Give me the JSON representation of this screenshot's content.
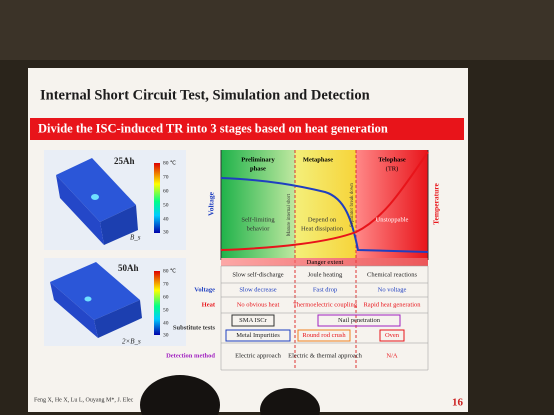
{
  "header": {
    "title": "Internal Short Circuit Test, Simulation and Detection"
  },
  "banner": "Divide the ISC-induced TR into 3 stages based on heat generation",
  "panels": [
    {
      "label": "25Ah",
      "colorbar_top": "80 ℃",
      "colorbar_ticks": [
        70,
        60,
        50,
        40,
        30
      ],
      "dimension": "B_s"
    },
    {
      "label": "50Ah",
      "colorbar_top": "80 ℃",
      "colorbar_ticks": [
        70,
        60,
        50,
        40,
        30
      ],
      "dimension": "2×B_s"
    }
  ],
  "diagram": {
    "phases": [
      {
        "label": [
          "Preliminary",
          "phase"
        ],
        "note": [
          "Self-limiting",
          "behavior"
        ]
      },
      {
        "label": [
          "Metaphase"
        ],
        "note": [
          "Depend on",
          "Heat dissipation"
        ]
      },
      {
        "label": [
          "Telophase",
          "(TR)"
        ],
        "note": [
          "Unstoppable"
        ]
      }
    ],
    "left_axis": "Voltage",
    "right_axis": "Temperature",
    "markers": [
      "Mature internal short",
      "Separator break down"
    ],
    "danger": "Danger extent"
  },
  "table": {
    "rows": [
      {
        "label": "",
        "cells": [
          "Slow self-discharge",
          "Joule heating",
          "Chemical reactions"
        ]
      },
      {
        "label": "Voltage",
        "cells": [
          "Slow decrease",
          "Fast drop",
          "No voltage"
        ]
      },
      {
        "label": "Heat",
        "cells": [
          "No obvious heat",
          "Thermoelectric coupling",
          "Rapid heat generation"
        ]
      },
      {
        "label": "Substitute tests",
        "cells": [
          "SMA ISCr",
          "Nail penetration",
          "Metal Impurities",
          "Round rod crush",
          "Oven"
        ]
      },
      {
        "label": "Detection method",
        "cells": [
          "Electric approach",
          "Electric & thermal approach",
          "N/A"
        ]
      }
    ]
  },
  "footer": {
    "citation": "Feng X, He X, Lu L, Ouyang M*, J. Elec",
    "page": "16"
  }
}
